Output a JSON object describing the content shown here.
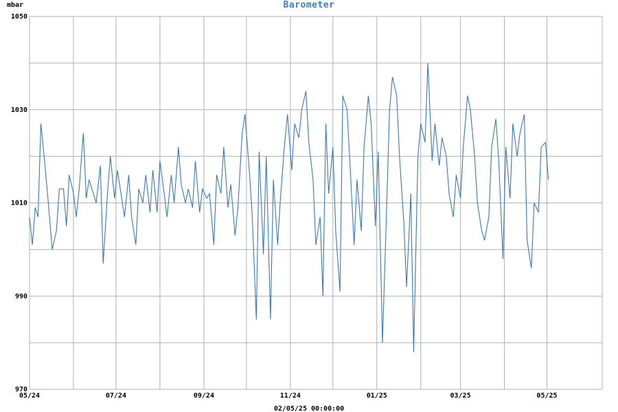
{
  "chart_data": {
    "type": "line",
    "title": "Barometer",
    "ylabel": "mbar",
    "footer": "02/05/25 00:00:00",
    "ylim": [
      970,
      1050
    ],
    "yticks": [
      970,
      990,
      1010,
      1030,
      1050
    ],
    "xlim": [
      "2024-05-01",
      "2025-06-09"
    ],
    "xticks": [
      {
        "date": "2024-05-01",
        "label": "05/24"
      },
      {
        "date": "2024-07-01",
        "label": "07/24"
      },
      {
        "date": "2024-09-01",
        "label": "09/24"
      },
      {
        "date": "2024-11-01",
        "label": "11/24"
      },
      {
        "date": "2025-01-01",
        "label": "01/25"
      },
      {
        "date": "2025-03-01",
        "label": "03/25"
      },
      {
        "date": "2025-05-01",
        "label": "05/25"
      }
    ],
    "gridlines_x": [
      "2024-05-01",
      "2024-06-01",
      "2024-07-01",
      "2024-08-01",
      "2024-09-01",
      "2024-10-01",
      "2024-11-01",
      "2024-12-01",
      "2025-01-01",
      "2025-02-01",
      "2025-03-01",
      "2025-04-01",
      "2025-05-01"
    ],
    "gridlines_y": [
      970,
      980,
      990,
      1000,
      1010,
      1020,
      1030,
      1040,
      1050
    ],
    "grid": true,
    "line_color": "#3a78b0",
    "series": [
      {
        "x": [
          "2024-05-01",
          "2024-05-03",
          "2024-05-05",
          "2024-05-07",
          "2024-05-09",
          "2024-05-11",
          "2024-05-14",
          "2024-05-17",
          "2024-05-20",
          "2024-05-22",
          "2024-05-25",
          "2024-05-27",
          "2024-05-29",
          "2024-06-01",
          "2024-06-03",
          "2024-06-05",
          "2024-06-08",
          "2024-06-10",
          "2024-06-12",
          "2024-06-15",
          "2024-06-17",
          "2024-06-20",
          "2024-06-22",
          "2024-06-25",
          "2024-06-27",
          "2024-06-30",
          "2024-07-02",
          "2024-07-05",
          "2024-07-07",
          "2024-07-10",
          "2024-07-12",
          "2024-07-15",
          "2024-07-17",
          "2024-07-20",
          "2024-07-22",
          "2024-07-25",
          "2024-07-27",
          "2024-07-30",
          "2024-08-01",
          "2024-08-04",
          "2024-08-06",
          "2024-08-09",
          "2024-08-11",
          "2024-08-14",
          "2024-08-16",
          "2024-08-19",
          "2024-08-21",
          "2024-08-24",
          "2024-08-26",
          "2024-08-29",
          "2024-08-31",
          "2024-09-03",
          "2024-09-05",
          "2024-09-08",
          "2024-09-10",
          "2024-09-13",
          "2024-09-15",
          "2024-09-18",
          "2024-09-20",
          "2024-09-23",
          "2024-09-25",
          "2024-09-28",
          "2024-09-30",
          "2024-10-03",
          "2024-10-05",
          "2024-10-08",
          "2024-10-10",
          "2024-10-13",
          "2024-10-15",
          "2024-10-18",
          "2024-10-20",
          "2024-10-23",
          "2024-10-25",
          "2024-10-28",
          "2024-10-30",
          "2024-11-02",
          "2024-11-04",
          "2024-11-07",
          "2024-11-09",
          "2024-11-12",
          "2024-11-14",
          "2024-11-17",
          "2024-11-19",
          "2024-11-22",
          "2024-11-24",
          "2024-11-26",
          "2024-11-28",
          "2024-12-01",
          "2024-12-03",
          "2024-12-06",
          "2024-12-08",
          "2024-12-11",
          "2024-12-13",
          "2024-12-16",
          "2024-12-18",
          "2024-12-21",
          "2024-12-23",
          "2024-12-26",
          "2024-12-28",
          "2024-12-31",
          "2025-01-02",
          "2025-01-05",
          "2025-01-07",
          "2025-01-10",
          "2025-01-12",
          "2025-01-15",
          "2025-01-17",
          "2025-01-20",
          "2025-01-22",
          "2025-01-25",
          "2025-01-27",
          "2025-01-30",
          "2025-02-01",
          "2025-02-04",
          "2025-02-06",
          "2025-02-09",
          "2025-02-11",
          "2025-02-14",
          "2025-02-16",
          "2025-02-19",
          "2025-02-21",
          "2025-02-24",
          "2025-02-26",
          "2025-03-01",
          "2025-03-03",
          "2025-03-06",
          "2025-03-08",
          "2025-03-11",
          "2025-03-13",
          "2025-03-16",
          "2025-03-18",
          "2025-03-21",
          "2025-03-23",
          "2025-03-26",
          "2025-03-28",
          "2025-03-31",
          "2025-04-02",
          "2025-04-05",
          "2025-04-07",
          "2025-04-10",
          "2025-04-12",
          "2025-04-15",
          "2025-04-17",
          "2025-04-20",
          "2025-04-22",
          "2025-04-25",
          "2025-04-27",
          "2025-04-30",
          "2025-05-02"
        ],
        "y": [
          1007,
          1001,
          1009,
          1007,
          1027,
          1021,
          1011,
          1000,
          1004,
          1013,
          1013,
          1005,
          1016,
          1012,
          1007,
          1013,
          1025,
          1011,
          1015,
          1012,
          1010,
          1018,
          997,
          1012,
          1020,
          1011,
          1017,
          1011,
          1007,
          1016,
          1007,
          1001,
          1013,
          1010,
          1016,
          1008,
          1017,
          1008,
          1019,
          1012,
          1007,
          1016,
          1010,
          1022,
          1014,
          1010,
          1013,
          1009,
          1019,
          1008,
          1013,
          1011,
          1012,
          1001,
          1016,
          1012,
          1022,
          1009,
          1014,
          1003,
          1009,
          1025,
          1029,
          1017,
          1008,
          985,
          1021,
          999,
          1020,
          985,
          1015,
          1001,
          1011,
          1023,
          1029,
          1017,
          1027,
          1024,
          1030,
          1034,
          1023,
          1015,
          1001,
          1007,
          990,
          1027,
          1012,
          1022,
          1004,
          991,
          1033,
          1030,
          1019,
          1001,
          1015,
          1004,
          1022,
          1033,
          1027,
          1005,
          1021,
          980,
          1000,
          1030,
          1037,
          1033,
          1020,
          1006,
          992,
          1012,
          978,
          1020,
          1027,
          1023,
          1040,
          1019,
          1027,
          1018,
          1024,
          1020,
          1012,
          1007,
          1016,
          1011,
          1022,
          1033,
          1030,
          1020,
          1010,
          1004,
          1002,
          1007,
          1022,
          1028,
          1019,
          998,
          1022,
          1011,
          1027,
          1020,
          1025,
          1029,
          1002,
          996,
          1010,
          1008,
          1022,
          1023,
          1015
        ]
      }
    ]
  }
}
